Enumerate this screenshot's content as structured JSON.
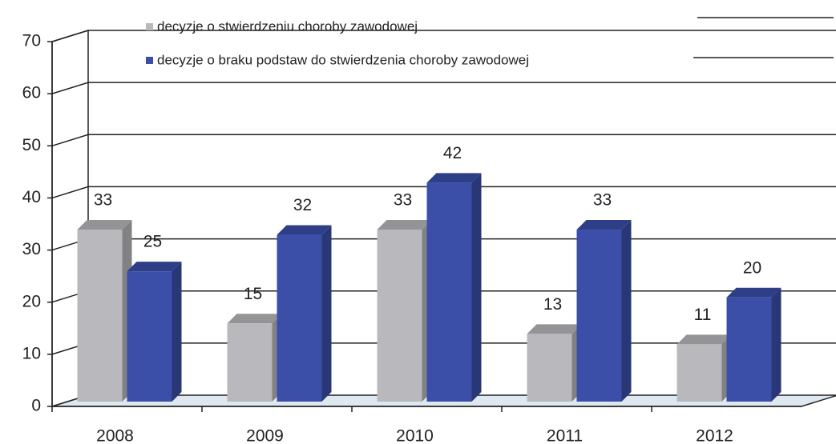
{
  "chart_data": {
    "type": "bar3d",
    "categories": [
      "2008",
      "2009",
      "2010",
      "2011",
      "2012"
    ],
    "series": [
      {
        "name": "decyzje o stwierdzeniu choroby zawodowej",
        "color": "#b9b9bd",
        "values": [
          33,
          15,
          33,
          13,
          11
        ]
      },
      {
        "name": "decyzje o braku podstaw do stwierdzenia choroby zawodowej",
        "color": "#3b4fa9",
        "values": [
          25,
          32,
          42,
          33,
          20
        ]
      }
    ],
    "ylim": [
      0,
      70
    ],
    "yticks": [
      0,
      10,
      20,
      30,
      40,
      50,
      60,
      70
    ],
    "grid": true,
    "legend": "top"
  }
}
